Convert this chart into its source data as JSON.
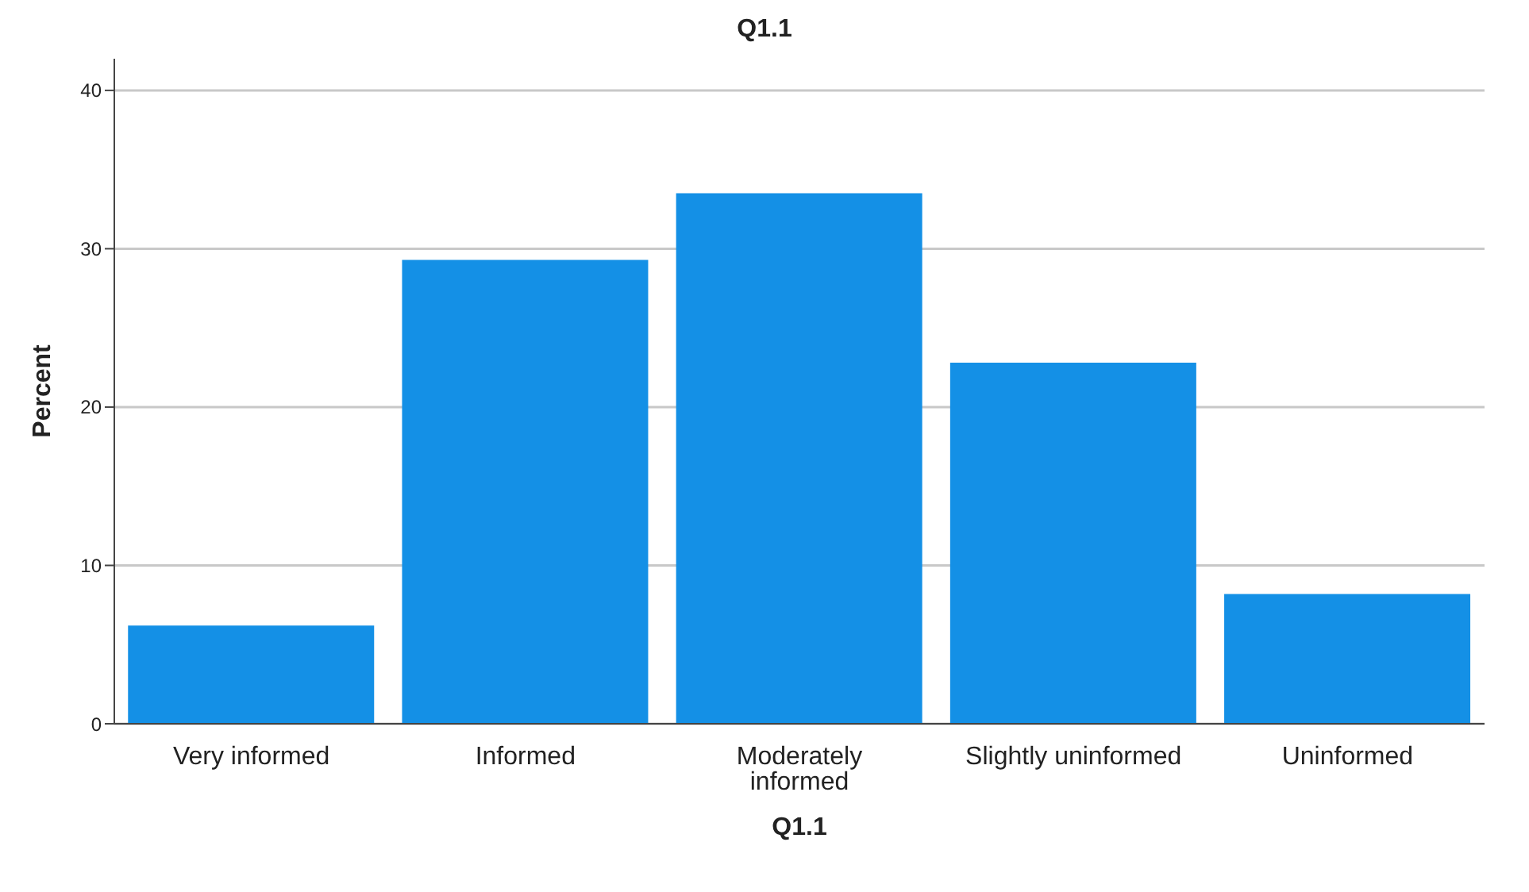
{
  "chart_data": {
    "type": "bar",
    "title": "Q1.1",
    "xlabel": "Q1.1",
    "ylabel": "Percent",
    "categories": [
      "Very informed",
      "Informed",
      "Moderately informed",
      "Slightly uninformed",
      "Uninformed"
    ],
    "values": [
      6.2,
      29.3,
      33.5,
      22.8,
      8.2
    ],
    "color": "#1490e6",
    "ylim": [
      0,
      42
    ],
    "yticks": [
      0,
      10,
      20,
      30,
      40
    ],
    "grid": "y"
  }
}
